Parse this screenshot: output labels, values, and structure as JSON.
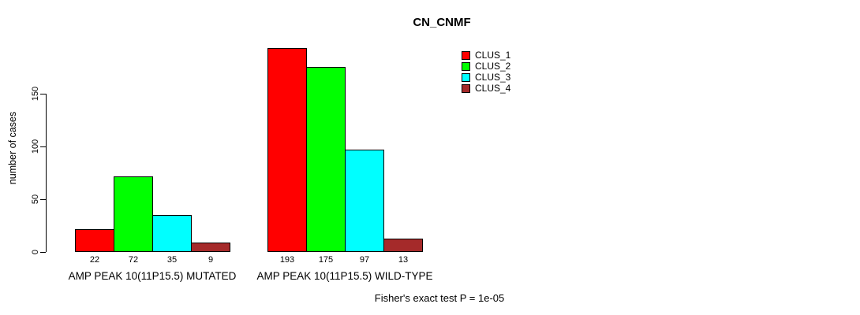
{
  "chart_data": {
    "type": "bar",
    "title": "CN_CNMF",
    "ylabel": "number of cases",
    "xlabel": "",
    "ylim": [
      0,
      150
    ],
    "yticks": [
      0,
      50,
      100,
      150
    ],
    "grid": false,
    "legend_position": "top-right",
    "series": [
      {
        "name": "CLUS_1",
        "color": "#ff0000"
      },
      {
        "name": "CLUS_2",
        "color": "#00ff00"
      },
      {
        "name": "CLUS_3",
        "color": "#00ffff"
      },
      {
        "name": "CLUS_4",
        "color": "#a52a2a"
      }
    ],
    "groups": [
      {
        "label": "AMP PEAK 10(11P15.5) MUTATED",
        "values": [
          22,
          72,
          35,
          9
        ]
      },
      {
        "label": "AMP PEAK 10(11P15.5) WILD-TYPE",
        "values": [
          193,
          175,
          97,
          13
        ]
      }
    ],
    "annotation": "Fisher's exact test P = 1e-05"
  }
}
